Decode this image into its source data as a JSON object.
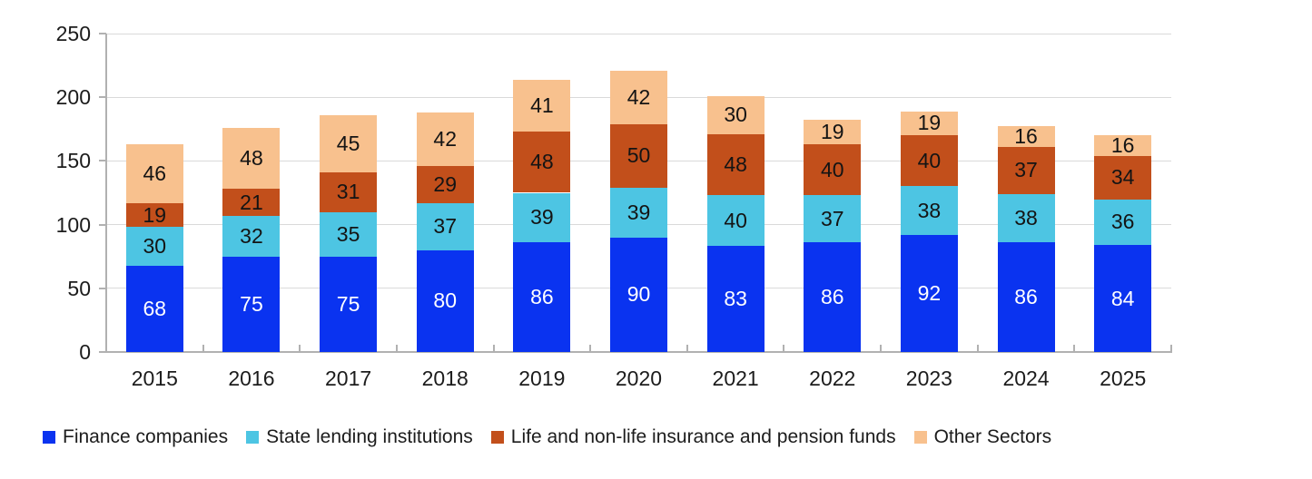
{
  "chart_data": {
    "type": "bar",
    "stacked": true,
    "title": "",
    "xlabel": "",
    "ylabel": "",
    "categories": [
      "2015",
      "2016",
      "2017",
      "2018",
      "2019",
      "2020",
      "2021",
      "2022",
      "2023",
      "2024",
      "2025"
    ],
    "series": [
      {
        "name": "Finance companies",
        "color": "#0a33f0",
        "label_color": "#ffffff",
        "values": [
          68,
          75,
          75,
          80,
          86,
          90,
          83,
          86,
          92,
          86,
          84
        ]
      },
      {
        "name": "State lending institutions",
        "color": "#4dc5e3",
        "label_color": "#141414",
        "values": [
          30,
          32,
          35,
          37,
          39,
          39,
          40,
          37,
          38,
          38,
          36
        ]
      },
      {
        "name": "Life and non-life insurance and pension funds",
        "color": "#c24f1b",
        "label_color": "#141414",
        "values": [
          19,
          21,
          31,
          29,
          48,
          50,
          48,
          40,
          40,
          37,
          34
        ]
      },
      {
        "name": "Other Sectors",
        "color": "#f8c18e",
        "label_color": "#141414",
        "values": [
          46,
          48,
          45,
          42,
          41,
          42,
          30,
          19,
          19,
          16,
          16
        ]
      }
    ],
    "y_axis": {
      "min": 0,
      "max": 250,
      "step": 50,
      "tick_labels": [
        "0",
        "50",
        "100",
        "150",
        "200",
        "250"
      ]
    },
    "grid": true,
    "data_labels": true,
    "legend_position": "bottom"
  },
  "styles": {
    "grid_color": "#dadada",
    "axis_color": "#b1b1b1",
    "text_color": "#1c1c1c",
    "background": "#ffffff"
  }
}
